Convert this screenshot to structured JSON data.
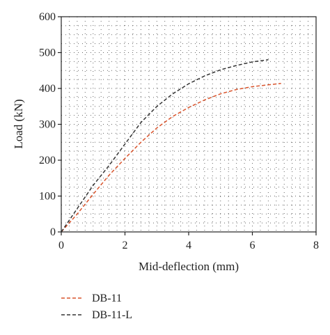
{
  "chart_data": {
    "type": "line",
    "title": "",
    "xlabel": "Mid-deflection (mm)",
    "ylabel": "Load (kN)",
    "xlim": [
      0,
      8
    ],
    "ylim": [
      0,
      600
    ],
    "x_ticks": [
      "0",
      "2",
      "4",
      "6",
      "8"
    ],
    "y_ticks": [
      "0",
      "100",
      "200",
      "300",
      "400",
      "500",
      "600"
    ],
    "grid": "dotted",
    "legend_position": "below",
    "series": [
      {
        "name": "DB-11",
        "color": "#d9532b",
        "line_style": "dashed",
        "x": [
          0,
          0.5,
          1.0,
          1.5,
          2.0,
          2.5,
          3.0,
          3.5,
          4.0,
          4.5,
          5.0,
          5.5,
          6.0,
          6.5,
          6.9
        ],
        "y": [
          0,
          50,
          105,
          158,
          205,
          250,
          290,
          322,
          347,
          368,
          385,
          397,
          405,
          410,
          414
        ]
      },
      {
        "name": "DB-11-L",
        "color": "#333333",
        "line_style": "dashed",
        "x": [
          0,
          0.5,
          1.0,
          1.5,
          2.0,
          2.5,
          3.0,
          3.5,
          4.0,
          4.5,
          5.0,
          5.5,
          6.0,
          6.5
        ],
        "y": [
          0,
          65,
          130,
          185,
          245,
          305,
          350,
          385,
          413,
          435,
          452,
          464,
          474,
          480
        ]
      }
    ]
  }
}
